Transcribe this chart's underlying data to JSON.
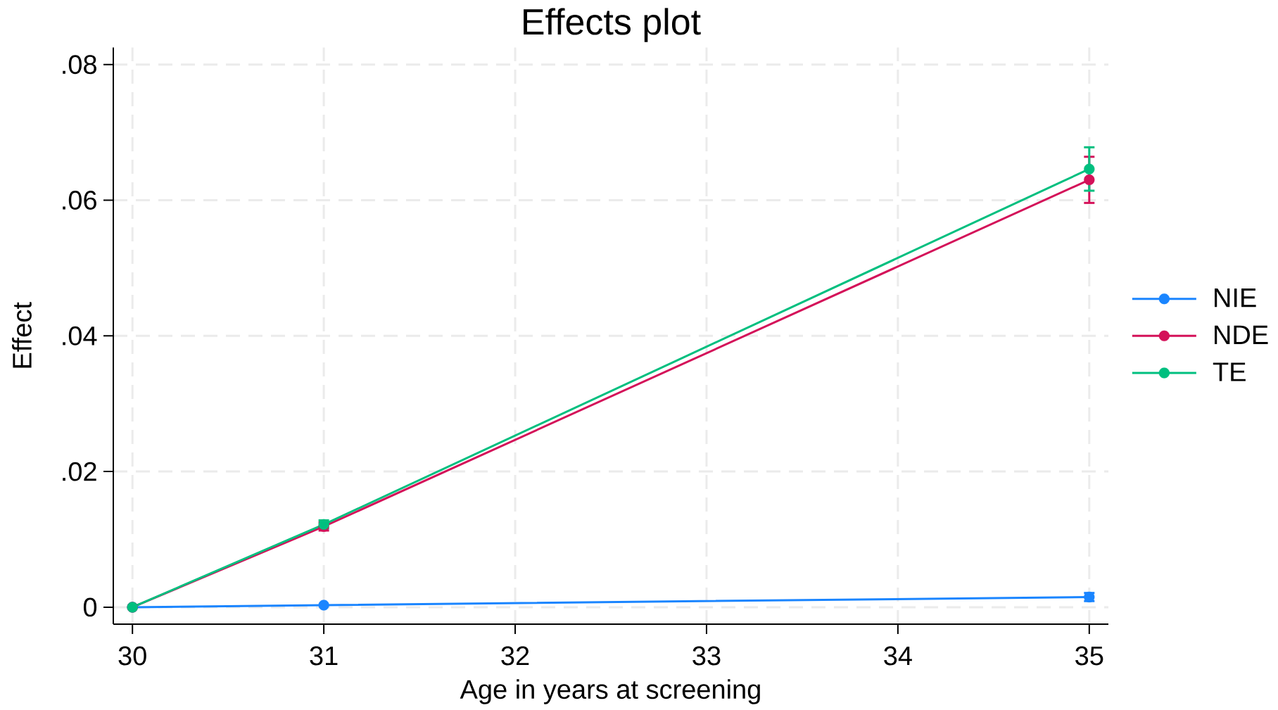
{
  "chart_data": {
    "type": "line",
    "title": "Effects plot",
    "xlabel": "Age in years at screening",
    "ylabel": "Effect",
    "x": [
      30,
      31,
      35
    ],
    "series": [
      {
        "name": "NIE",
        "color": "#1a85ff",
        "values": [
          0,
          0.0003,
          0.0015
        ],
        "errors": [
          null,
          null,
          0.0006
        ]
      },
      {
        "name": "NDE",
        "color": "#d41159",
        "values": [
          0,
          0.0119,
          0.063
        ],
        "errors": [
          null,
          0.0006,
          0.0034
        ]
      },
      {
        "name": "TE",
        "color": "#00bf7f",
        "values": [
          0,
          0.0122,
          0.0646
        ],
        "errors": [
          null,
          0.0006,
          0.0032
        ]
      }
    ],
    "xlim": [
      29.9,
      35.1
    ],
    "xticks": [
      30,
      31,
      32,
      33,
      34,
      35
    ],
    "ylim": [
      -0.0025,
      0.0825
    ],
    "yticks": [
      0,
      {
        "value": 0.02,
        "label": ".02"
      },
      {
        "value": 0.04,
        "label": ".04"
      },
      {
        "value": 0.06,
        "label": ".06"
      },
      {
        "value": 0.08,
        "label": ".08"
      }
    ],
    "grid": true,
    "legend": "right",
    "marker": "circle",
    "line_style": "solid"
  }
}
